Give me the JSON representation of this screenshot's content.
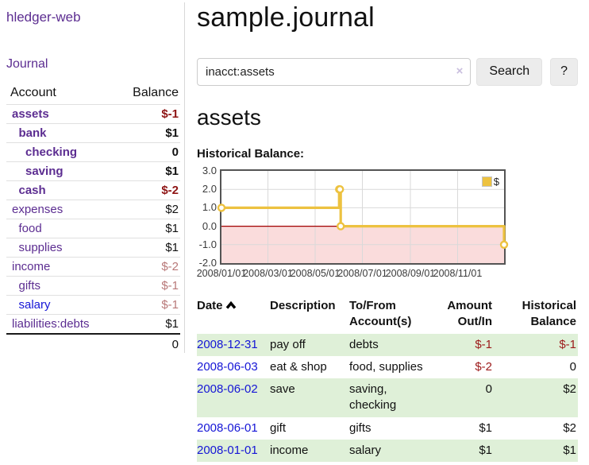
{
  "app": {
    "title": "hledger-web"
  },
  "sidebar": {
    "nav_journal": "Journal",
    "accounts_table": {
      "header_account": "Account",
      "header_balance": "Balance",
      "rows": [
        {
          "label": "assets",
          "balance": "$-1",
          "depth": 1,
          "bold": true,
          "tone": "neg-strong",
          "link_color": "purple"
        },
        {
          "label": "bank",
          "balance": "$1",
          "depth": 2,
          "bold": true,
          "tone": "",
          "link_color": "purple"
        },
        {
          "label": "checking",
          "balance": "0",
          "depth": 3,
          "bold": true,
          "tone": "",
          "link_color": "purple"
        },
        {
          "label": "saving",
          "balance": "$1",
          "depth": 3,
          "bold": true,
          "tone": "",
          "link_color": "purple"
        },
        {
          "label": "cash",
          "balance": "$-2",
          "depth": 2,
          "bold": true,
          "tone": "neg-strong",
          "link_color": "purple"
        },
        {
          "label": "expenses",
          "balance": "$2",
          "depth": 1,
          "bold": false,
          "tone": "",
          "link_color": "purple"
        },
        {
          "label": "food",
          "balance": "$1",
          "depth": 2,
          "bold": false,
          "tone": "",
          "link_color": "purple"
        },
        {
          "label": "supplies",
          "balance": "$1",
          "depth": 2,
          "bold": false,
          "tone": "",
          "link_color": "purple"
        },
        {
          "label": "income",
          "balance": "$-2",
          "depth": 1,
          "bold": false,
          "tone": "neg-muted",
          "link_color": "purple"
        },
        {
          "label": "gifts",
          "balance": "$-1",
          "depth": 2,
          "bold": false,
          "tone": "neg-muted",
          "link_color": "purple"
        },
        {
          "label": "salary",
          "balance": "$-1",
          "depth": 2,
          "bold": false,
          "tone": "neg-muted",
          "link_color": "blue"
        },
        {
          "label": "liabilities:debts",
          "balance": "$1",
          "depth": 1,
          "bold": false,
          "tone": "",
          "link_color": "purple"
        }
      ],
      "total": "0"
    }
  },
  "main": {
    "title": "sample.journal",
    "search": {
      "value": "inacct:assets",
      "clear_icon": "×",
      "button_label": "Search",
      "help_label": "?"
    },
    "account_heading": "assets",
    "chart_label": "Historical Balance:"
  },
  "chart_data": {
    "type": "line",
    "step": true,
    "title": "Historical Balance:",
    "series": [
      {
        "name": "$",
        "points": [
          {
            "x": "2008-01-01",
            "y": 1
          },
          {
            "x": "2008-06-01",
            "y": 2
          },
          {
            "x": "2008-06-02",
            "y": 2
          },
          {
            "x": "2008-06-03",
            "y": 0
          },
          {
            "x": "2008-12-31",
            "y": -1
          }
        ]
      }
    ],
    "xrange": [
      "2008-01-01",
      "2008-12-31"
    ],
    "ylim": [
      -2,
      3
    ],
    "y_ticks": [
      "3.0",
      "2.0",
      "1.0",
      "0.0",
      "-1.0",
      "-2.0"
    ],
    "x_ticks": [
      "2008/01/01",
      "2008/03/01",
      "2008/05/01",
      "2008/07/01",
      "2008/09/01",
      "2008/11/01"
    ],
    "grid": true,
    "legend": {
      "label": "$",
      "position": "top-right"
    },
    "line_color": "#edc240",
    "marker_fill": "#ffffff",
    "zero_line_color": "#a00000",
    "negative_region_fill": "#fadcdc",
    "grid_color": "#d9d9d9"
  },
  "register": {
    "headers": {
      "date": "Date",
      "description": "Description",
      "accounts": "To/From Account(s)",
      "amount": "Amount Out/In",
      "balance": "Historical Balance"
    },
    "sort_icon": "chevron-up",
    "rows": [
      {
        "date": "2008-12-31",
        "description": "pay off",
        "accounts": "debts",
        "amount": "$-1",
        "balance": "$-1",
        "amount_neg": true,
        "balance_neg": true
      },
      {
        "date": "2008-06-03",
        "description": "eat & shop",
        "accounts": "food, supplies",
        "amount": "$-2",
        "balance": "0",
        "amount_neg": true,
        "balance_neg": false
      },
      {
        "date": "2008-06-02",
        "description": "save",
        "accounts": "saving, checking",
        "amount": "0",
        "balance": "$2",
        "amount_neg": false,
        "balance_neg": false
      },
      {
        "date": "2008-06-01",
        "description": "gift",
        "accounts": "gifts",
        "amount": "$1",
        "balance": "$2",
        "amount_neg": false,
        "balance_neg": false
      },
      {
        "date": "2008-01-01",
        "description": "income",
        "accounts": "salary",
        "amount": "$1",
        "balance": "$1",
        "amount_neg": false,
        "balance_neg": false
      }
    ]
  }
}
